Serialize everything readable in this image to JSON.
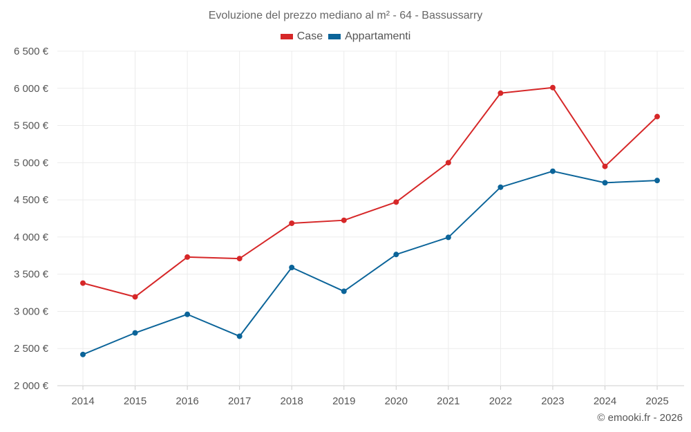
{
  "chart_data": {
    "type": "line",
    "title": "Evoluzione del prezzo mediano al m² - 64 - Bassussarry",
    "xlabel": "",
    "ylabel": "",
    "x": [
      "2014",
      "2015",
      "2016",
      "2017",
      "2018",
      "2019",
      "2020",
      "2021",
      "2022",
      "2023",
      "2024",
      "2025"
    ],
    "ylim": [
      2000,
      6500
    ],
    "yticks": [
      2000,
      2500,
      3000,
      3500,
      4000,
      4500,
      5000,
      5500,
      6000,
      6500
    ],
    "ytick_labels": [
      "2 000 €",
      "2 500 €",
      "3 000 €",
      "3 500 €",
      "4 000 €",
      "4 500 €",
      "5 000 €",
      "5 500 €",
      "6 000 €",
      "6 500 €"
    ],
    "grid": true,
    "legend_position": "top-center",
    "series": [
      {
        "name": "Case",
        "color": "#d62728",
        "values": [
          3380,
          3195,
          3730,
          3710,
          4185,
          4225,
          4470,
          5000,
          5935,
          6010,
          4950,
          5620
        ]
      },
      {
        "name": "Appartamenti",
        "color": "#0b6499",
        "values": [
          2420,
          2710,
          2960,
          2665,
          3590,
          3270,
          3765,
          3995,
          4670,
          4885,
          4730,
          4760
        ]
      }
    ]
  },
  "credit": "© emooki.fr - 2026"
}
